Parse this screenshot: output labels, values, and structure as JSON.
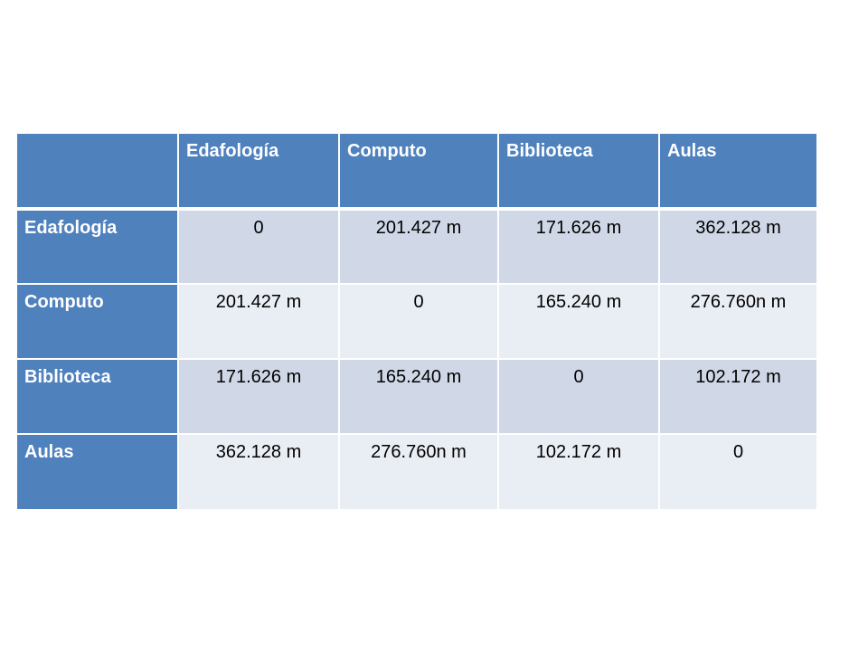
{
  "table": {
    "header": {
      "corner": "",
      "columns": [
        "Edafología",
        "Computo",
        "Biblioteca",
        "Aulas"
      ]
    },
    "rows": [
      {
        "label": "Edafología",
        "cells": [
          "0",
          "201.427 m",
          "171.626 m",
          "362.128 m"
        ]
      },
      {
        "label": "Computo",
        "cells": [
          "201.427 m",
          "0",
          "165.240 m",
          "276.760n m"
        ]
      },
      {
        "label": "Biblioteca",
        "cells": [
          "171.626 m",
          "165.240 m",
          "0",
          "102.172 m"
        ]
      },
      {
        "label": "Aulas",
        "cells": [
          "362.128 m",
          "276.760n m",
          "102.172 m",
          "0"
        ]
      }
    ]
  },
  "colors": {
    "header_blue": "#4f81bd",
    "band_dark": "#d0d8e8",
    "band_light": "#e9edf4"
  }
}
